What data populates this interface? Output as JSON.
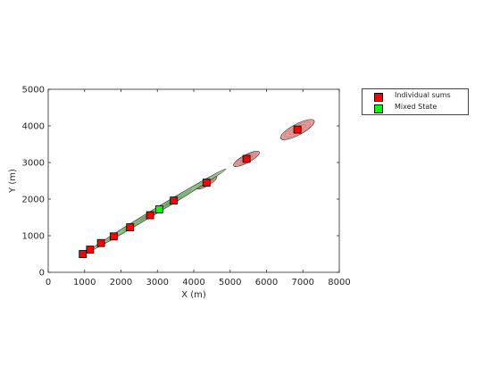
{
  "chart_data": {
    "type": "scatter",
    "title": "",
    "xlabel": "X (m)",
    "ylabel": "Y (m)",
    "xlim": [
      0,
      8000
    ],
    "ylim": [
      0,
      5000
    ],
    "xticks": [
      "0",
      "1000",
      "2000",
      "3000",
      "4000",
      "5000",
      "6000",
      "7000",
      "8000"
    ],
    "yticks": [
      "0",
      "1000",
      "2000",
      "3000",
      "4000",
      "5000"
    ],
    "grid": false,
    "legend_position": "outside-top-right",
    "series": [
      {
        "name": "Individual sums",
        "color": "#ff0000",
        "marker": "square",
        "x": [
          950,
          1150,
          1450,
          1800,
          2250,
          2800,
          3450,
          4350,
          5450,
          6850
        ],
        "y": [
          500,
          620,
          800,
          980,
          1230,
          1560,
          1960,
          2450,
          3100,
          3900
        ],
        "uncertainty_color": "#e8a0a0",
        "uncertainty_ellipses": [
          {
            "cx": 950,
            "cy": 500,
            "rx": 70,
            "ry": 35,
            "angle": 30
          },
          {
            "cx": 1150,
            "cy": 620,
            "rx": 90,
            "ry": 40,
            "angle": 30
          },
          {
            "cx": 1450,
            "cy": 800,
            "rx": 110,
            "ry": 45,
            "angle": 30
          },
          {
            "cx": 1800,
            "cy": 980,
            "rx": 140,
            "ry": 50,
            "angle": 30
          },
          {
            "cx": 2250,
            "cy": 1230,
            "rx": 170,
            "ry": 55,
            "angle": 30
          },
          {
            "cx": 2800,
            "cy": 1560,
            "rx": 200,
            "ry": 60,
            "angle": 30
          },
          {
            "cx": 3450,
            "cy": 1960,
            "rx": 240,
            "ry": 70,
            "angle": 30
          },
          {
            "cx": 4350,
            "cy": 2450,
            "rx": 320,
            "ry": 90,
            "angle": 30
          },
          {
            "cx": 5450,
            "cy": 3100,
            "rx": 400,
            "ry": 110,
            "angle": 28
          },
          {
            "cx": 6850,
            "cy": 3900,
            "rx": 520,
            "ry": 150,
            "angle": 28
          }
        ]
      },
      {
        "name": "Mixed State",
        "color": "#00ff00",
        "marker": "square",
        "x": [
          3050
        ],
        "y": [
          1720
        ],
        "uncertainty_color": "#a9d8a0",
        "uncertainty_ellipses": [
          {
            "cx": 3000,
            "cy": 1700,
            "rx": 2200,
            "ry": 70,
            "angle": 31
          }
        ]
      }
    ]
  }
}
